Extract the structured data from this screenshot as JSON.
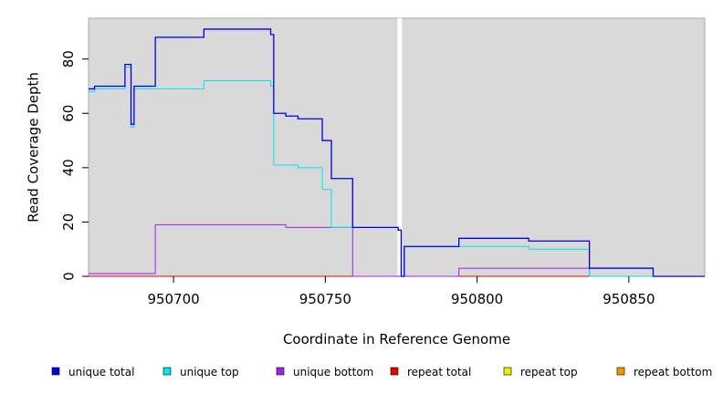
{
  "chart_data": {
    "type": "line",
    "title": "",
    "xlabel": "Coordinate in Reference Genome",
    "ylabel": "Read Coverage Depth",
    "xlim": [
      950672,
      950875
    ],
    "ylim": [
      0,
      95
    ],
    "x_ticks": [
      950700,
      950750,
      950800,
      950850
    ],
    "y_ticks": [
      0,
      20,
      40,
      60,
      80
    ],
    "grid": false,
    "background": "#d9d9d9",
    "gap_marker_x": 950774.5,
    "legend_position": "bottom",
    "series": [
      {
        "name": "unique total",
        "color": "#0000ee",
        "x": [
          950672,
          950674,
          950684,
          950686,
          950687,
          950694,
          950710,
          950732,
          950733,
          950737,
          950741,
          950749,
          950752,
          950759,
          950774,
          950775,
          950776,
          950794,
          950817,
          950837,
          950858,
          950875
        ],
        "y": [
          69,
          70,
          78,
          56,
          70,
          88,
          91,
          89,
          60,
          59,
          58,
          50,
          36,
          18,
          17,
          0,
          11,
          14,
          13,
          3,
          0,
          0
        ]
      },
      {
        "name": "unique top",
        "color": "#00e5ee",
        "x": [
          950672,
          950674,
          950684,
          950686,
          950687,
          950694,
          950710,
          950732,
          950733,
          950741,
          950749,
          950752,
          950759,
          950774,
          950775,
          950776,
          950794,
          950817,
          950837,
          950858,
          950875
        ],
        "y": [
          68,
          69,
          77,
          55,
          69,
          69,
          72,
          70,
          41,
          40,
          32,
          18,
          18,
          17,
          0,
          11,
          11,
          10,
          0,
          0,
          0
        ]
      },
      {
        "name": "unique bottom",
        "color": "#a020f0",
        "x": [
          950672,
          950694,
          950737,
          950759,
          950794,
          950837,
          950875
        ],
        "y": [
          1,
          19,
          18,
          0,
          3,
          0,
          0
        ]
      },
      {
        "name": "repeat total",
        "color": "#ee0000",
        "x": [
          950672,
          950875
        ],
        "y": [
          0,
          0
        ]
      },
      {
        "name": "repeat top",
        "color": "#eeee00",
        "x": [
          950672,
          950875
        ],
        "y": [
          0,
          0
        ]
      },
      {
        "name": "repeat bottom",
        "color": "#ee9a00",
        "x": [
          950672,
          950875
        ],
        "y": [
          0,
          0
        ]
      }
    ]
  }
}
